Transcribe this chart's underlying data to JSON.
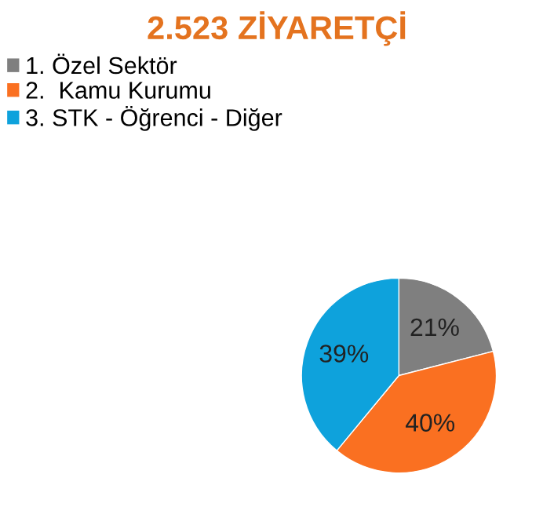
{
  "chart_data": {
    "type": "pie",
    "title": "2.523 ZİYARETÇİ",
    "categories": [
      "1. Özel Sektör",
      "2.  Kamu Kurumu",
      "3. STK - Öğrenci - Diğer"
    ],
    "values": [
      21,
      40,
      39
    ],
    "value_labels": [
      "21%",
      "40%",
      "39%"
    ],
    "colors": [
      "#7f7f7f",
      "#fa7021",
      "#0ea2dc"
    ],
    "legend": "top left"
  }
}
